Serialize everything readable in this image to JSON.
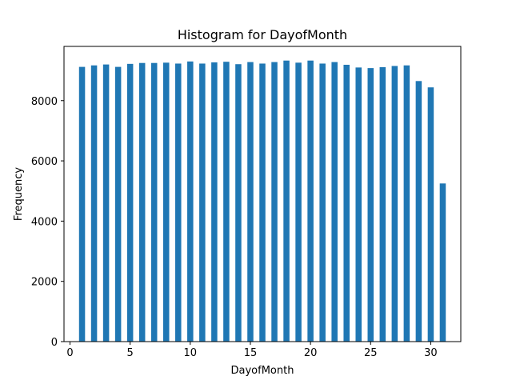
{
  "chart_data": {
    "type": "bar",
    "title": "Histogram for DayofMonth",
    "xlabel": "DayofMonth",
    "ylabel": "Frequency",
    "xlim": [
      -0.5,
      32.5
    ],
    "ylim": [
      0,
      9800
    ],
    "xticks": [
      0,
      5,
      10,
      15,
      20,
      25,
      30
    ],
    "yticks": [
      0,
      2000,
      4000,
      6000,
      8000
    ],
    "bar_width_days": 0.5,
    "grid": false,
    "bar_color": "#1f77b4",
    "series": [
      {
        "x": [
          1,
          2,
          3,
          4,
          5,
          6,
          7,
          8,
          9,
          10,
          11,
          12,
          13,
          14,
          15,
          16,
          17,
          18,
          19,
          20,
          21,
          22,
          23,
          24,
          25,
          26,
          27,
          28,
          29,
          30,
          31
        ],
        "values": [
          9120,
          9170,
          9200,
          9120,
          9220,
          9250,
          9250,
          9260,
          9230,
          9300,
          9230,
          9270,
          9290,
          9210,
          9280,
          9230,
          9280,
          9330,
          9260,
          9330,
          9230,
          9280,
          9190,
          9100,
          9080,
          9110,
          9150,
          9170,
          8650,
          8440,
          5250
        ]
      }
    ]
  }
}
